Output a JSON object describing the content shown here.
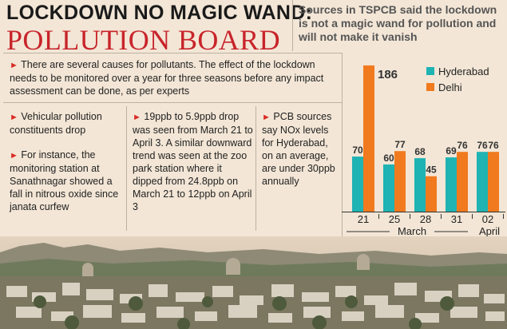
{
  "headline": {
    "line1": "LOCKDOWN NO MAGIC WAND:",
    "line2": "POLLUTION BOARD"
  },
  "source_quote": "Sources in TSPCB said the lockdown is not a magic wand for pollution and will not make it vanish",
  "intro": "There are several causes for pollutants. The effect of the lockdown needs to be monitored over a year for three seasons before any impact assessment can be done, as per experts",
  "col1": {
    "p1": "Vehicular pollution constituents drop",
    "p2": "For instance, the monitoring station at Sanathnagar showed a fall in nitrous oxide since janata curfew"
  },
  "col2": "19ppb to 5.9ppb drop was seen from March 21 to April 3. A similar downward trend was seen at the zoo park station where it dipped from 24.8ppb on March 21 to 12ppb on April 3",
  "col3": "PCB sources say NOx levels for Hyderabad, on an average, are under 30ppb annually",
  "colors": {
    "hyderabad": "#1fb3b3",
    "delhi": "#f07a1d",
    "headline_red": "#c8242b",
    "bullet": "#d92b25"
  },
  "chart_data": {
    "type": "bar",
    "categories": [
      "21",
      "25",
      "28",
      "31",
      "02"
    ],
    "month_labels": [
      "March",
      "April"
    ],
    "series": [
      {
        "name": "Hyderabad",
        "values": [
          70,
          60,
          68,
          69,
          76
        ]
      },
      {
        "name": "Delhi",
        "values": [
          186,
          77,
          45,
          76,
          76
        ]
      }
    ],
    "ylim": [
      0,
      190
    ],
    "legend": "top-right",
    "grid": false
  }
}
